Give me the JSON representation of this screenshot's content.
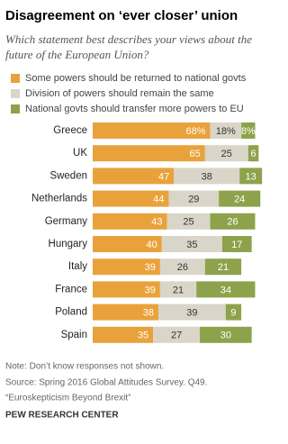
{
  "chart_data": {
    "type": "bar",
    "stacked": true,
    "orientation": "horizontal",
    "title": "Disagreement on ‘ever closer’ union",
    "subtitle": "Which statement best describes your views about the future of the European Union?",
    "categories": [
      "Greece",
      "UK",
      "Sweden",
      "Netherlands",
      "Germany",
      "Hungary",
      "Italy",
      "France",
      "Poland",
      "Spain"
    ],
    "series": [
      {
        "name": "Some powers should be returned to national govts",
        "color": "#e9a23b",
        "values": [
          68,
          65,
          47,
          44,
          43,
          40,
          39,
          39,
          38,
          35
        ],
        "value_labels": [
          "68%",
          "65",
          "47",
          "44",
          "43",
          "40",
          "39",
          "39",
          "38",
          "35"
        ]
      },
      {
        "name": "Division of powers should remain the same",
        "color": "#d9d5c8",
        "values": [
          18,
          25,
          38,
          29,
          25,
          35,
          26,
          21,
          39,
          27
        ],
        "value_labels": [
          "18%",
          "25",
          "38",
          "29",
          "25",
          "35",
          "26",
          "21",
          "39",
          "27"
        ]
      },
      {
        "name": "National govts should transfer more powers to EU",
        "color": "#8da24b",
        "values": [
          8,
          6,
          13,
          24,
          26,
          17,
          21,
          34,
          9,
          30
        ],
        "value_labels": [
          "8%",
          "6",
          "13",
          "24",
          "26",
          "17",
          "21",
          "34",
          "9",
          "30"
        ]
      }
    ]
  },
  "notes": [
    "Note: Don’t know responses not shown.",
    "Source: Spring 2016 Global Attitudes Survey. Q49.",
    "“Euroskepticism Beyond Brexit”"
  ],
  "brand": "PEW RESEARCH CENTER"
}
